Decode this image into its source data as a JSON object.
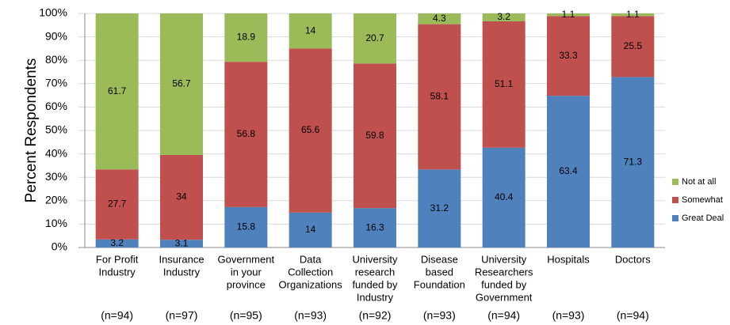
{
  "chart_data": {
    "type": "bar",
    "stacking": "percent",
    "y_axis_label": "Percent Respondents",
    "categories": [
      [
        "For Profit",
        "Industry"
      ],
      [
        "Insurance",
        "Industry"
      ],
      [
        "Government",
        "in your",
        "province"
      ],
      [
        "Data",
        "Collection",
        "Organizations"
      ],
      [
        "University",
        "research",
        "funded by",
        "Industry"
      ],
      [
        "Disease",
        "based",
        "Foundation"
      ],
      [
        "University",
        "Researchers",
        "funded by",
        "Government"
      ],
      [
        "Hospitals"
      ],
      [
        "Doctors"
      ]
    ],
    "sample_sizes": [
      "(n=94)",
      "(n=97)",
      "(n=95)",
      "(n=93)",
      "(n=92)",
      "(n=93)",
      "(n=94)",
      "(n=93)",
      "(n=94)"
    ],
    "series": [
      {
        "name": "Great Deal",
        "color": "#4f81bd",
        "values": [
          3.2,
          3.1,
          15.8,
          14,
          16.3,
          31.2,
          40.4,
          63.4,
          71.3
        ]
      },
      {
        "name": "Somewhat",
        "color": "#c0504d",
        "values": [
          27.7,
          34,
          56.8,
          65.6,
          59.8,
          58.1,
          51.1,
          33.3,
          25.5
        ]
      },
      {
        "name": "Not at all",
        "color": "#9bbb59",
        "values": [
          61.7,
          56.7,
          18.9,
          14,
          20.7,
          4.3,
          3.2,
          1.1,
          1.1
        ]
      }
    ],
    "ylim": [
      0,
      100
    ],
    "yticks": [
      {
        "value": 0,
        "label": "0%"
      },
      {
        "value": 10,
        "label": "10%"
      },
      {
        "value": 20,
        "label": "20%"
      },
      {
        "value": 30,
        "label": "30%"
      },
      {
        "value": 40,
        "label": "40%"
      },
      {
        "value": 50,
        "label": "50%"
      },
      {
        "value": 60,
        "label": "60%"
      },
      {
        "value": 70,
        "label": "70%"
      },
      {
        "value": 80,
        "label": "80%"
      },
      {
        "value": 90,
        "label": "90%"
      },
      {
        "value": 100,
        "label": "100%"
      }
    ],
    "grid": true,
    "legend": "right"
  }
}
